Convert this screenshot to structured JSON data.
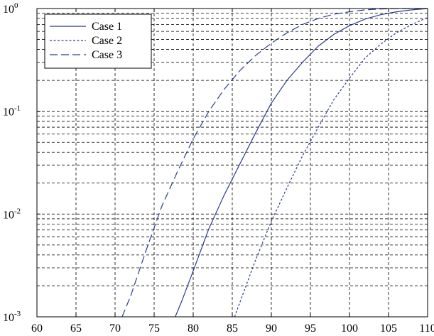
{
  "chart_data": {
    "type": "line",
    "title": "",
    "xlabel": "",
    "ylabel": "",
    "xlim": [
      60,
      110
    ],
    "ylim": [
      0.001,
      1
    ],
    "yscale": "log",
    "grid": true,
    "legend_position": "top-left",
    "x_ticks": [
      60,
      65,
      70,
      75,
      80,
      85,
      90,
      95,
      100,
      105,
      110
    ],
    "x_tick_labels": [
      "60",
      "65",
      "70",
      "75",
      "80",
      "85",
      "90",
      "95",
      "100",
      "105",
      "110"
    ],
    "y_ticks": [
      {
        "value": 0.001,
        "base": "10",
        "exp": "-3"
      },
      {
        "value": 0.01,
        "base": "10",
        "exp": "-2"
      },
      {
        "value": 0.1,
        "base": "10",
        "exp": "-1"
      },
      {
        "value": 1,
        "base": "10",
        "exp": "0"
      }
    ],
    "series": [
      {
        "name": "Case 1",
        "dash": "solid",
        "color": "#2b3d8f",
        "x": [
          77.7,
          78.5,
          80,
          82,
          84,
          86,
          88,
          90,
          92,
          94,
          96,
          98,
          100,
          102,
          104,
          106,
          108,
          110
        ],
        "y": [
          0.001,
          0.0014,
          0.0028,
          0.0072,
          0.0155,
          0.031,
          0.062,
          0.12,
          0.2,
          0.3,
          0.43,
          0.56,
          0.68,
          0.79,
          0.87,
          0.93,
          0.97,
          1.0
        ]
      },
      {
        "name": "Case 2",
        "dash": "dotted",
        "color": "#2b3d8f",
        "x": [
          85.3,
          86,
          88,
          90,
          92,
          94,
          96,
          98,
          100,
          102,
          104,
          106,
          108,
          110
        ],
        "y": [
          0.001,
          0.0014,
          0.0036,
          0.0085,
          0.018,
          0.037,
          0.07,
          0.13,
          0.21,
          0.33,
          0.45,
          0.58,
          0.7,
          0.82
        ]
      },
      {
        "name": "Case 3",
        "dash": "dashed",
        "color": "#2b3d8f",
        "x": [
          70.9,
          72,
          74,
          76,
          78,
          80,
          82,
          84,
          86,
          88,
          90,
          92,
          94,
          96,
          98,
          100,
          102,
          104,
          106,
          110
        ],
        "y": [
          0.001,
          0.0016,
          0.0045,
          0.012,
          0.026,
          0.054,
          0.1,
          0.165,
          0.25,
          0.35,
          0.46,
          0.58,
          0.7,
          0.8,
          0.88,
          0.93,
          0.97,
          0.99,
          1.0,
          1.0
        ]
      }
    ]
  }
}
